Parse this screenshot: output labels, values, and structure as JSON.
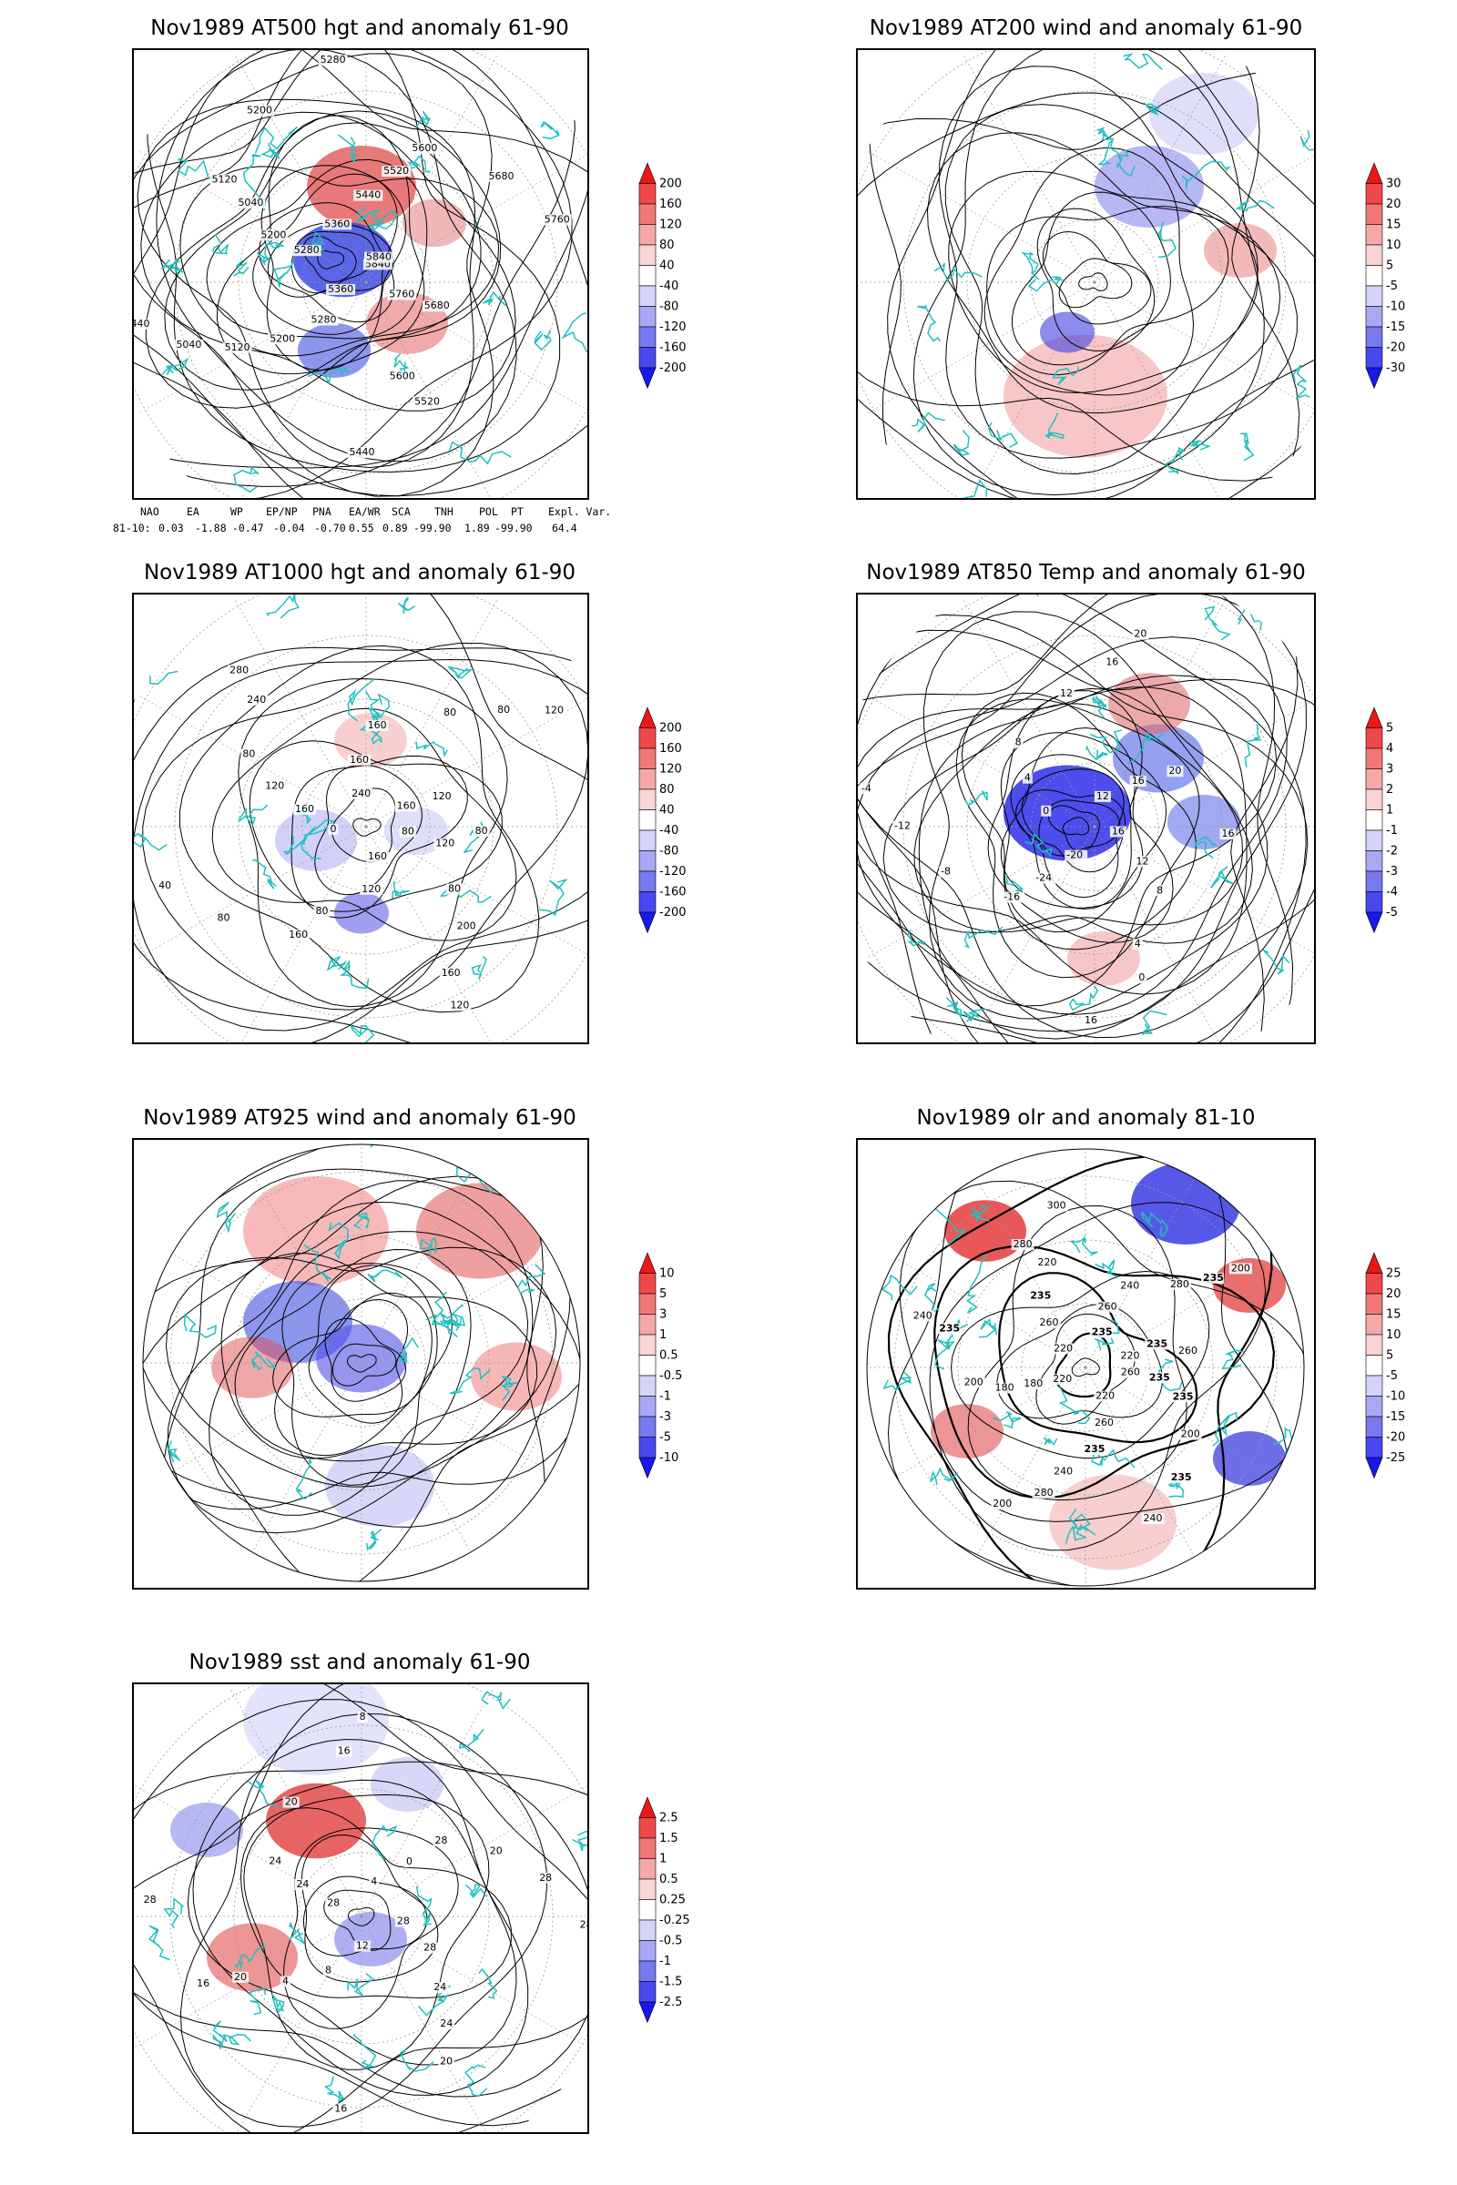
{
  "panels": [
    {
      "title": "Nov1989 AT500 hgt and anomaly 61-90",
      "contour_labels": [
        "5840",
        "5760",
        "5680",
        "5600",
        "5520",
        "5440",
        "5360",
        "5280",
        "5200",
        "5120",
        "5040",
        "5440",
        "5280",
        "5200",
        "5040",
        "5120",
        "5200",
        "5280",
        "5360",
        "5440",
        "5520",
        "5600",
        "5680",
        "5760",
        "5840"
      ],
      "colorbar": {
        "labels": [
          "200",
          "160",
          "120",
          "80",
          "40",
          "-40",
          "-80",
          "-120",
          "-160",
          "-200"
        ],
        "colors": [
          "#e81818",
          "#f04848",
          "#f07878",
          "#f4a8a8",
          "#f8d4d4",
          "#ffffff",
          "#d4d4f8",
          "#a8a8f4",
          "#7878f0",
          "#4848f0",
          "#1818e8"
        ]
      }
    },
    {
      "title": "Nov1989 AT200 wind and anomaly 61-90",
      "contour_labels": [],
      "colorbar": {
        "labels": [
          "30",
          "20",
          "15",
          "10",
          "5",
          "-5",
          "-10",
          "-15",
          "-20",
          "-30"
        ],
        "colors": [
          "#e81818",
          "#f04848",
          "#f07878",
          "#f4a8a8",
          "#f8d4d4",
          "#ffffff",
          "#d4d4f8",
          "#a8a8f4",
          "#7878f0",
          "#4848f0",
          "#1818e8"
        ]
      }
    },
    {
      "title": "Nov1989 AT1000 hgt and anomaly 61-90",
      "contour_labels": [
        "80",
        "120",
        "80",
        "200",
        "160",
        "120",
        "160",
        "120",
        "80",
        "160",
        "80",
        "40",
        "0",
        "160",
        "120",
        "80",
        "240",
        "280",
        "240",
        "160",
        "160",
        "80",
        "80",
        "120",
        "160",
        "120",
        "80"
      ],
      "colorbar": {
        "labels": [
          "200",
          "160",
          "120",
          "80",
          "40",
          "-40",
          "-80",
          "-120",
          "-160",
          "-200"
        ],
        "colors": [
          "#e81818",
          "#f04848",
          "#f07878",
          "#f4a8a8",
          "#f8d4d4",
          "#ffffff",
          "#d4d4f8",
          "#a8a8f4",
          "#7878f0",
          "#4848f0",
          "#1818e8"
        ]
      }
    },
    {
      "title": "Nov1989 AT850 Temp and anomaly 61-90",
      "contour_labels": [
        "16",
        "12",
        "8",
        "4",
        "0",
        "16",
        "-20",
        "-24",
        "-16",
        "-8",
        "-12",
        "-4",
        "0",
        "4",
        "8",
        "12",
        "16",
        "20",
        "12",
        "16",
        "20",
        "16"
      ],
      "colorbar": {
        "labels": [
          "5",
          "4",
          "3",
          "2",
          "1",
          "-1",
          "-2",
          "-3",
          "-4",
          "-5"
        ],
        "colors": [
          "#e81818",
          "#f04848",
          "#f07878",
          "#f4a8a8",
          "#f8d4d4",
          "#ffffff",
          "#d4d4f8",
          "#a8a8f4",
          "#7878f0",
          "#4848f0",
          "#1818e8"
        ]
      }
    },
    {
      "title": "Nov1989 AT925 wind and anomaly 61-90",
      "contour_labels": [],
      "colorbar": {
        "labels": [
          "10",
          "5",
          "3",
          "1",
          "0.5",
          "-0.5",
          "-1",
          "-3",
          "-5",
          "-10"
        ],
        "colors": [
          "#e81818",
          "#f04848",
          "#f07878",
          "#f4a8a8",
          "#f8d4d4",
          "#ffffff",
          "#d4d4f8",
          "#a8a8f4",
          "#7878f0",
          "#4848f0",
          "#1818e8"
        ]
      }
    },
    {
      "title": "Nov1989 olr and anomaly 81-10",
      "contour_labels": [
        "260",
        "235",
        "235",
        "200",
        "235",
        "240",
        "220",
        "260",
        "235",
        "240",
        "280",
        "200",
        "220",
        "180",
        "180",
        "200",
        "235",
        "240",
        "220",
        "260",
        "235",
        "220",
        "280",
        "300",
        "235",
        "260",
        "240",
        "280",
        "235",
        "200",
        "220",
        "235",
        "260"
      ],
      "colorbar": {
        "labels": [
          "25",
          "20",
          "15",
          "10",
          "5",
          "-5",
          "-10",
          "-15",
          "-20",
          "-25"
        ],
        "colors": [
          "#e81818",
          "#f04848",
          "#f07878",
          "#f4a8a8",
          "#f8d4d4",
          "#ffffff",
          "#d4d4f8",
          "#a8a8f4",
          "#7878f0",
          "#4848f0",
          "#1818e8"
        ]
      }
    },
    {
      "title": "Nov1989 sst and anomaly 61-90",
      "contour_labels": [
        "28",
        "28",
        "24",
        "24",
        "20",
        "16",
        "12",
        "8",
        "4",
        "20",
        "16",
        "28",
        "28",
        "24",
        "24",
        "20",
        "16",
        "8",
        "4",
        "0",
        "28",
        "20",
        "28",
        "28"
      ],
      "colorbar": {
        "labels": [
          "2.5",
          "1.5",
          "1",
          "0.5",
          "0.25",
          "-0.25",
          "-0.5",
          "-1",
          "-1.5",
          "-2.5"
        ],
        "colors": [
          "#e81818",
          "#f04848",
          "#f07878",
          "#f4a8a8",
          "#f8d4d4",
          "#ffffff",
          "#d4d4f8",
          "#a8a8f4",
          "#7878f0",
          "#4848f0",
          "#1818e8"
        ]
      }
    }
  ],
  "indices": {
    "header": [
      "NAO",
      "EA",
      "WP",
      "EP/NP",
      "PNA",
      "EA/WR",
      "SCA",
      "TNH",
      "POL",
      "PT",
      "Expl. Var."
    ],
    "row_label": "81-10:",
    "values": [
      "0.03",
      "-1.88",
      "-0.47",
      "-0.04",
      "-0.70",
      "0.55",
      "0.89",
      "-99.90",
      "1.89",
      "-99.90",
      "64.4"
    ]
  }
}
